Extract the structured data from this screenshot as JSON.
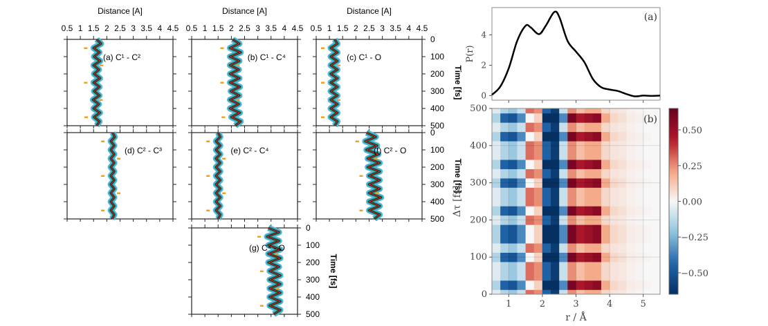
{
  "chart_data": [
    {
      "type": "line",
      "group": "left",
      "xlabel": "Distance [A]",
      "ylabel": "Time [fs]",
      "xlim": [
        0.5,
        4.5
      ],
      "ylim": [
        500,
        0
      ],
      "xticks": [
        "0.5",
        "1",
        "1.5",
        "2",
        "2.5",
        "3",
        "3.5",
        "4",
        "4.5"
      ],
      "yticks": [
        "0",
        "100",
        "200",
        "300",
        "400",
        "500"
      ],
      "t": [
        0,
        25,
        50,
        75,
        100,
        125,
        150,
        175,
        200,
        225,
        250,
        275,
        300,
        325,
        350,
        375,
        400,
        425,
        450,
        475,
        500
      ],
      "panels": [
        {
          "label": "(a) C¹ - C²",
          "distance": [
            1.62,
            1.78,
            1.5,
            1.72,
            1.52,
            1.75,
            1.5,
            1.7,
            1.52,
            1.74,
            1.5,
            1.72,
            1.52,
            1.72,
            1.48,
            1.7,
            1.5,
            1.74,
            1.52,
            1.72,
            1.62
          ]
        },
        {
          "label": "(b) C¹ - C⁴",
          "distance": [
            2.05,
            2.3,
            1.95,
            2.35,
            1.95,
            2.3,
            1.95,
            2.28,
            1.95,
            2.3,
            1.95,
            2.32,
            1.98,
            2.3,
            1.95,
            2.28,
            1.95,
            2.32,
            2.0,
            2.35,
            2.15
          ]
        },
        {
          "label": "(c) C¹ - O",
          "distance": [
            1.2,
            1.3,
            1.05,
            1.3,
            1.05,
            1.3,
            1.05,
            1.3,
            1.05,
            1.3,
            1.05,
            1.3,
            1.05,
            1.3,
            1.05,
            1.3,
            1.05,
            1.3,
            1.05,
            1.3,
            1.2
          ]
        },
        {
          "label": "(d) C² - C³",
          "distance": [
            2.22,
            2.3,
            2.15,
            2.28,
            2.15,
            2.28,
            2.15,
            2.28,
            2.15,
            2.28,
            2.15,
            2.28,
            2.15,
            2.28,
            2.15,
            2.28,
            2.15,
            2.28,
            2.15,
            2.28,
            2.2
          ]
        },
        {
          "label": "(e) C² - C⁴",
          "distance": [
            1.5,
            1.58,
            1.42,
            1.58,
            1.42,
            1.58,
            1.42,
            1.58,
            1.42,
            1.58,
            1.42,
            1.58,
            1.42,
            1.58,
            1.42,
            1.58,
            1.42,
            1.58,
            1.42,
            1.58,
            1.5
          ]
        },
        {
          "label": "(f) C² - O",
          "distance": [
            2.4,
            2.75,
            2.35,
            2.8,
            2.4,
            2.85,
            2.45,
            2.9,
            2.45,
            2.9,
            2.5,
            2.9,
            2.5,
            2.9,
            2.5,
            2.95,
            2.5,
            2.9,
            2.5,
            2.9,
            2.7
          ]
        },
        {
          "label": "(g) C⁴ - O",
          "distance": [
            3.4,
            3.8,
            3.35,
            3.8,
            3.4,
            3.85,
            3.4,
            3.85,
            3.4,
            3.8,
            3.45,
            3.85,
            3.45,
            3.85,
            3.45,
            3.85,
            3.45,
            3.85,
            3.45,
            3.85,
            3.6
          ]
        }
      ]
    },
    {
      "type": "line",
      "panel_label": "(a)",
      "ylabel": "P(r)",
      "xlim": [
        0.5,
        5.5
      ],
      "ylim": [
        -0.3,
        5.8
      ],
      "yticks": [
        "0",
        "2",
        "4"
      ],
      "x": [
        0.5,
        0.75,
        1.0,
        1.25,
        1.5,
        1.65,
        1.9,
        2.1,
        2.35,
        2.5,
        2.75,
        3.0,
        3.25,
        3.5,
        3.75,
        4.0,
        4.25,
        4.5,
        4.75,
        5.0,
        5.25,
        5.5
      ],
      "y": [
        0.05,
        0.6,
        1.8,
        3.6,
        4.6,
        4.5,
        4.05,
        4.6,
        5.5,
        5.2,
        3.6,
        2.9,
        2.2,
        1.1,
        0.55,
        0.4,
        0.3,
        0.1,
        -0.05,
        0.0,
        -0.02,
        0.0
      ],
      "color": "#000000"
    },
    {
      "type": "heatmap",
      "panel_label": "(b)",
      "xlabel": "r / Å",
      "ylabel": "Δτ [fs]",
      "xlim": [
        0.5,
        5.5
      ],
      "ylim": [
        0,
        500
      ],
      "xticks": [
        "1",
        "2",
        "3",
        "4",
        "5"
      ],
      "yticks": [
        "0",
        "100",
        "200",
        "300",
        "400",
        "500"
      ],
      "grid": true,
      "colormap": "RdBu_r",
      "colorbar": {
        "range": [
          -0.65,
          0.65
        ],
        "ticks": [
          "0.50",
          "0.25",
          "0.00",
          "−0.25",
          "−0.50"
        ],
        "tick_values": [
          0.5,
          0.25,
          0,
          -0.25,
          -0.5
        ]
      },
      "r": [
        0.625,
        0.875,
        1.125,
        1.375,
        1.625,
        1.875,
        2.125,
        2.375,
        2.625,
        2.875,
        3.125,
        3.375,
        3.625,
        3.875,
        4.125,
        4.375,
        4.625,
        4.875,
        5.125,
        5.375
      ],
      "t": [
        0,
        25,
        50,
        75,
        100,
        125,
        150,
        175,
        200,
        225,
        250,
        275,
        300,
        325,
        350,
        375,
        400,
        425,
        450,
        475,
        500
      ],
      "values": [
        [
          -0.05,
          -0.15,
          -0.2,
          -0.1,
          0.3,
          0.25,
          -0.45,
          -0.6,
          -0.1,
          0.25,
          0.15,
          0.2,
          0.2,
          0.08,
          0.05,
          0.04,
          0.02,
          0.01,
          0,
          0
        ],
        [
          -0.15,
          -0.45,
          -0.5,
          -0.35,
          0.0,
          0.1,
          -0.65,
          -0.65,
          -0.35,
          0.6,
          0.45,
          0.5,
          0.55,
          0.2,
          0.08,
          0.06,
          0.03,
          0.02,
          0.01,
          0
        ],
        [
          -0.05,
          -0.15,
          -0.2,
          -0.1,
          0.3,
          0.25,
          -0.45,
          -0.6,
          -0.1,
          0.25,
          0.15,
          0.2,
          0.2,
          0.08,
          0.05,
          0.04,
          0.02,
          0.01,
          0,
          0
        ],
        [
          -0.05,
          -0.15,
          -0.2,
          -0.1,
          0.3,
          0.25,
          -0.45,
          -0.6,
          -0.1,
          0.25,
          0.15,
          0.2,
          0.2,
          0.08,
          0.05,
          0.04,
          0.02,
          0.01,
          0,
          0
        ],
        [
          -0.15,
          -0.45,
          -0.5,
          -0.35,
          0.0,
          0.1,
          -0.65,
          -0.65,
          -0.35,
          0.6,
          0.45,
          0.5,
          0.55,
          0.2,
          0.08,
          0.06,
          0.03,
          0.02,
          0.01,
          0
        ],
        [
          -0.05,
          -0.15,
          -0.2,
          -0.1,
          0.3,
          0.25,
          -0.45,
          -0.6,
          -0.1,
          0.25,
          0.15,
          0.2,
          0.2,
          0.08,
          0.05,
          0.04,
          0.02,
          0.01,
          0,
          0
        ],
        [
          -0.15,
          -0.45,
          -0.5,
          -0.35,
          0.0,
          0.1,
          -0.65,
          -0.65,
          -0.35,
          0.6,
          0.45,
          0.5,
          0.55,
          0.2,
          0.08,
          0.06,
          0.03,
          0.02,
          0.01,
          0
        ],
        [
          -0.15,
          -0.45,
          -0.5,
          -0.35,
          0.0,
          0.1,
          -0.65,
          -0.65,
          -0.35,
          0.6,
          0.45,
          0.5,
          0.55,
          0.2,
          0.08,
          0.06,
          0.03,
          0.02,
          0.01,
          0
        ],
        [
          -0.05,
          -0.15,
          -0.2,
          -0.1,
          0.3,
          0.25,
          -0.45,
          -0.6,
          -0.1,
          0.25,
          0.15,
          0.2,
          0.2,
          0.08,
          0.05,
          0.04,
          0.02,
          0.01,
          0,
          0
        ],
        [
          -0.15,
          -0.45,
          -0.5,
          -0.35,
          0.0,
          0.1,
          -0.65,
          -0.65,
          -0.35,
          0.6,
          0.45,
          0.5,
          0.55,
          0.2,
          0.08,
          0.06,
          0.03,
          0.02,
          0.01,
          0
        ],
        [
          -0.05,
          -0.15,
          -0.2,
          -0.1,
          0.3,
          0.25,
          -0.45,
          -0.6,
          -0.1,
          0.25,
          0.15,
          0.2,
          0.2,
          0.08,
          0.05,
          0.04,
          0.02,
          0.01,
          0,
          0
        ],
        [
          -0.05,
          -0.15,
          -0.2,
          -0.1,
          0.3,
          0.25,
          -0.45,
          -0.6,
          -0.1,
          0.25,
          0.15,
          0.2,
          0.2,
          0.08,
          0.05,
          0.04,
          0.02,
          0.01,
          0,
          0
        ],
        [
          -0.15,
          -0.45,
          -0.5,
          -0.35,
          0.0,
          0.1,
          -0.65,
          -0.65,
          -0.35,
          0.6,
          0.45,
          0.5,
          0.55,
          0.2,
          0.08,
          0.06,
          0.03,
          0.02,
          0.01,
          0
        ],
        [
          -0.05,
          -0.15,
          -0.2,
          -0.1,
          0.3,
          0.25,
          -0.45,
          -0.6,
          -0.1,
          0.25,
          0.15,
          0.2,
          0.2,
          0.08,
          0.05,
          0.04,
          0.02,
          0.01,
          0,
          0
        ],
        [
          -0.15,
          -0.45,
          -0.5,
          -0.35,
          0.0,
          0.1,
          -0.65,
          -0.65,
          -0.35,
          0.6,
          0.45,
          0.5,
          0.55,
          0.2,
          0.08,
          0.06,
          0.03,
          0.02,
          0.01,
          0
        ],
        [
          -0.05,
          -0.15,
          -0.2,
          -0.1,
          0.3,
          0.25,
          -0.45,
          -0.6,
          -0.1,
          0.25,
          0.15,
          0.2,
          0.2,
          0.08,
          0.05,
          0.04,
          0.02,
          0.01,
          0,
          0
        ],
        [
          -0.05,
          -0.15,
          -0.2,
          -0.1,
          0.3,
          0.25,
          -0.45,
          -0.6,
          -0.1,
          0.25,
          0.15,
          0.2,
          0.2,
          0.08,
          0.05,
          0.04,
          0.02,
          0.01,
          0,
          0
        ],
        [
          -0.15,
          -0.45,
          -0.5,
          -0.35,
          0.0,
          0.1,
          -0.65,
          -0.65,
          -0.35,
          0.6,
          0.45,
          0.5,
          0.55,
          0.2,
          0.08,
          0.06,
          0.03,
          0.02,
          0.01,
          0
        ],
        [
          -0.05,
          -0.15,
          -0.2,
          -0.1,
          0.3,
          0.25,
          -0.45,
          -0.6,
          -0.1,
          0.25,
          0.15,
          0.2,
          0.2,
          0.08,
          0.05,
          0.04,
          0.02,
          0.01,
          0,
          0
        ],
        [
          -0.15,
          -0.45,
          -0.5,
          -0.35,
          0.0,
          0.1,
          -0.65,
          -0.65,
          -0.35,
          0.6,
          0.45,
          0.5,
          0.55,
          0.2,
          0.08,
          0.06,
          0.03,
          0.02,
          0.01,
          0
        ],
        [
          -0.05,
          -0.15,
          -0.2,
          -0.1,
          0.3,
          0.25,
          -0.45,
          -0.6,
          -0.1,
          0.25,
          0.15,
          0.2,
          0.2,
          0.08,
          0.05,
          0.04,
          0.02,
          0.01,
          0,
          0
        ]
      ]
    }
  ]
}
